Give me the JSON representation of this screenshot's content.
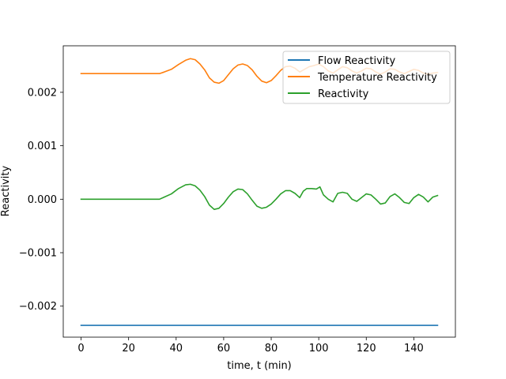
{
  "chart_data": {
    "type": "line",
    "title": "",
    "xlabel": "time, t (min)",
    "ylabel": "Reactivity",
    "xlim": [
      -7.5,
      157.5
    ],
    "ylim": [
      -0.00258,
      0.00287
    ],
    "xticks": [
      0,
      20,
      40,
      60,
      80,
      100,
      120,
      140
    ],
    "xtick_labels": [
      "0",
      "20",
      "40",
      "60",
      "80",
      "100",
      "120",
      "140"
    ],
    "yticks": [
      -0.002,
      -0.001,
      0.0,
      0.001,
      0.002
    ],
    "ytick_labels": [
      "−0.002",
      "−0.001",
      "0.000",
      "0.001",
      "0.002"
    ],
    "grid": false,
    "legend": "top-right",
    "series": [
      {
        "name": "Flow Reactivity",
        "color": "#1f77b4",
        "x": [
          0,
          150
        ],
        "y": [
          -0.00236,
          -0.00236
        ]
      },
      {
        "name": "Temperature Reactivity",
        "color": "#ff7f0e",
        "x": [
          0,
          33,
          35,
          38,
          41,
          44,
          46,
          48,
          50,
          52,
          54,
          56,
          58,
          60,
          62,
          64,
          66,
          68,
          70,
          72,
          74,
          76,
          78,
          80,
          82,
          84,
          86,
          88,
          90,
          92,
          94,
          96,
          98,
          100,
          102,
          104,
          106,
          108,
          110,
          112,
          114,
          116,
          118,
          120,
          122,
          124,
          126,
          128,
          130,
          132,
          134,
          136,
          138,
          140,
          142,
          144,
          146,
          148,
          150
        ],
        "y": [
          0.00235,
          0.00235,
          0.00238,
          0.00243,
          0.00252,
          0.0026,
          0.00263,
          0.00261,
          0.00253,
          0.00242,
          0.00227,
          0.00219,
          0.00217,
          0.00222,
          0.00233,
          0.00244,
          0.00251,
          0.00253,
          0.0025,
          0.00242,
          0.0023,
          0.00221,
          0.00218,
          0.00222,
          0.00231,
          0.00241,
          0.00248,
          0.00249,
          0.00245,
          0.00238,
          0.00243,
          0.00248,
          0.0025,
          0.00253,
          0.00248,
          0.0024,
          0.00236,
          0.00242,
          0.00248,
          0.00246,
          0.0024,
          0.00236,
          0.0024,
          0.00245,
          0.00244,
          0.00238,
          0.00234,
          0.00238,
          0.00244,
          0.00243,
          0.00238,
          0.00235,
          0.00239,
          0.00243,
          0.00241,
          0.00236,
          0.00234,
          0.00236,
          0.00237
        ]
      },
      {
        "name": "Reactivity",
        "color": "#2ca02c",
        "x": [
          0,
          33,
          35,
          38,
          41,
          44,
          46,
          48,
          50,
          52,
          54,
          56,
          58,
          60,
          62,
          64,
          66,
          68,
          70,
          72,
          74,
          76,
          78,
          80,
          82,
          84,
          86,
          88,
          90,
          92,
          93.5,
          95,
          97,
          99,
          100.5,
          102,
          104,
          106,
          108,
          110,
          112,
          114,
          116,
          118,
          120,
          122,
          124,
          126,
          128,
          130,
          132,
          134,
          136,
          138,
          140,
          142,
          144,
          146,
          148,
          150
        ],
        "y": [
          0.0,
          0.0,
          4e-05,
          0.0001,
          0.0002,
          0.00027,
          0.00028,
          0.00025,
          0.00017,
          5e-05,
          -0.00011,
          -0.00019,
          -0.00017,
          -8e-05,
          4e-05,
          0.00014,
          0.00019,
          0.00018,
          0.0001,
          -2e-05,
          -0.00013,
          -0.00017,
          -0.00015,
          -9e-05,
          0.0,
          0.0001,
          0.00016,
          0.00016,
          0.00011,
          3e-05,
          0.00015,
          0.0002,
          0.0002,
          0.00019,
          0.00023,
          8e-05,
          0.0,
          -5e-05,
          0.00011,
          0.00013,
          0.00011,
          0.0,
          -4e-05,
          3e-05,
          0.0001,
          8e-05,
          0.0,
          -9e-05,
          -7e-05,
          5e-05,
          0.0001,
          3e-05,
          -6e-05,
          -8e-05,
          3e-05,
          9e-05,
          4e-05,
          -5e-05,
          4e-05,
          7e-05
        ]
      }
    ]
  }
}
